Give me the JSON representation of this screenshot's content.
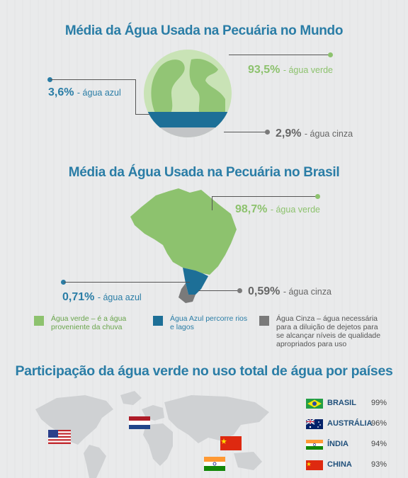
{
  "world": {
    "title": "Média da Água Usada na Pecuária no Mundo",
    "green_pct": "93,5%",
    "green_label": "- água verde",
    "blue_pct": "3,6%",
    "blue_label": "- água azul",
    "gray_pct": "2,9%",
    "gray_label": "- água cinza"
  },
  "brazil": {
    "title": "Média da Água Usada na Pecuária no Brasil",
    "green_pct": "98,7%",
    "green_label": "- água verde",
    "blue_pct": "0,71%",
    "blue_label": "- água azul",
    "gray_pct": "0,59%",
    "gray_label": "- água cinza"
  },
  "legend": {
    "green": "Água verde – é a água proveniente da chuva",
    "blue": "Água Azul percorre rios e lagos",
    "gray": "Água Cinza – água necessária para a diluição de dejetos para se alcançar níveis de qualidade apropriados para uso"
  },
  "countries_section": {
    "title": "Participação da água verde no uso total de água por países",
    "items": [
      {
        "name": "BRASIL",
        "pct": "99%"
      },
      {
        "name": "AUSTRÁLIA",
        "pct": "96%"
      },
      {
        "name": "ÍNDIA",
        "pct": "94%"
      },
      {
        "name": "CHINA",
        "pct": "93%"
      }
    ]
  },
  "colors": {
    "green": "#8dc26e",
    "blue": "#2a7da6",
    "gray": "#7a7a7a"
  }
}
